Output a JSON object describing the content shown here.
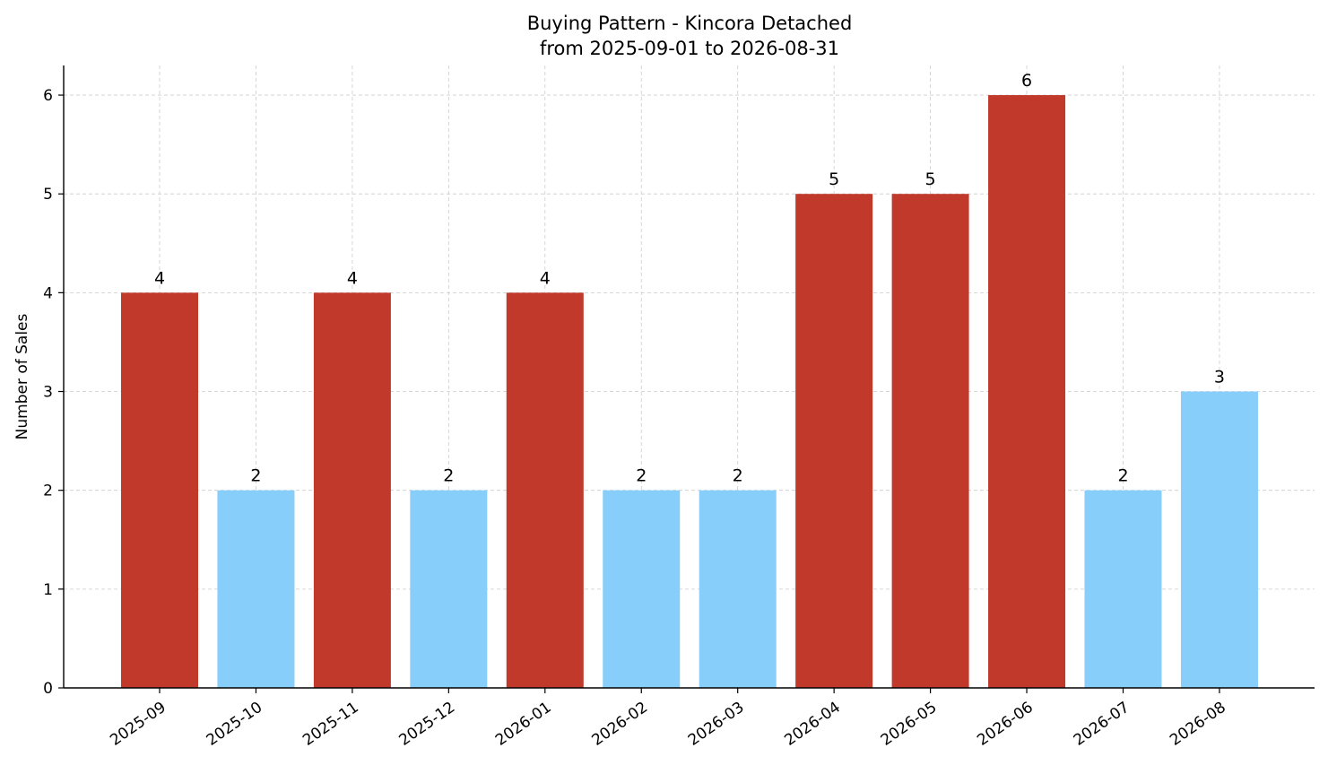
{
  "chart_data": {
    "type": "bar",
    "title": "Buying Pattern - Kincora Detached",
    "subtitle": "from 2025-09-01 to 2026-08-31",
    "xlabel": "",
    "ylabel": "Number of Sales",
    "categories": [
      "2025-09",
      "2025-10",
      "2025-11",
      "2025-12",
      "2026-01",
      "2026-02",
      "2026-03",
      "2026-04",
      "2026-05",
      "2026-06",
      "2026-07",
      "2026-08"
    ],
    "values": [
      4,
      2,
      4,
      2,
      4,
      2,
      2,
      5,
      5,
      6,
      2,
      3
    ],
    "ylim": [
      0,
      6.3
    ],
    "yticks": [
      0,
      1,
      2,
      3,
      4,
      5,
      6
    ],
    "grid": true,
    "data_labels": true,
    "colors": {
      "high": "#c0392b",
      "low": "#87cefa",
      "high_threshold": 4
    }
  }
}
